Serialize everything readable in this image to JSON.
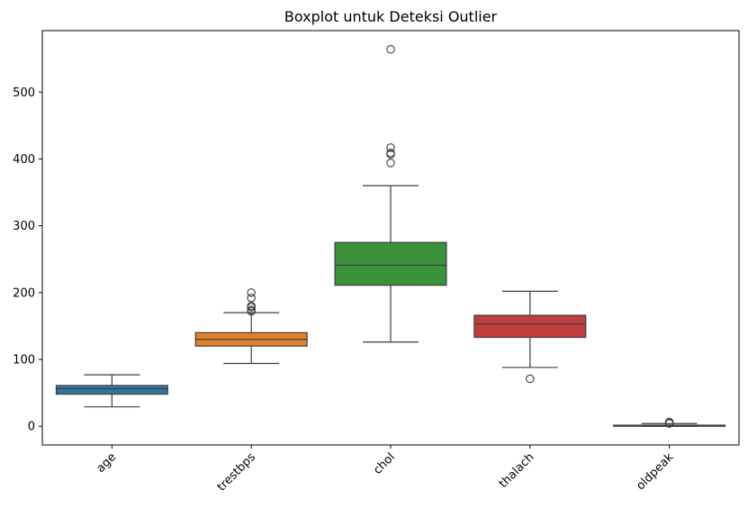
{
  "chart_data": {
    "type": "boxplot",
    "title": "Boxplot untuk Deteksi Outlier",
    "xlabel": "",
    "ylabel": "",
    "categories": [
      "age",
      "trestbps",
      "chol",
      "thalach",
      "oldpeak"
    ],
    "ylim": [
      -28,
      592
    ],
    "yticks": [
      0,
      100,
      200,
      300,
      400,
      500
    ],
    "xtick_rotation": 45,
    "grid": false,
    "boxes": [
      {
        "category": "age",
        "whisker_low": 29,
        "q1": 48,
        "median": 56,
        "q3": 61,
        "whisker_high": 77,
        "outliers": [],
        "color": "#3274a1"
      },
      {
        "category": "trestbps",
        "whisker_low": 94,
        "q1": 120,
        "median": 130,
        "q3": 140,
        "whisker_high": 170,
        "outliers": [
          172,
          174,
          178,
          180,
          192,
          200
        ],
        "color": "#e1812c"
      },
      {
        "category": "chol",
        "whisker_low": 126,
        "q1": 211,
        "median": 241,
        "q3": 275,
        "whisker_high": 360,
        "outliers": [
          394,
          407,
          409,
          417,
          564
        ],
        "color": "#3a923a"
      },
      {
        "category": "thalach",
        "whisker_low": 88,
        "q1": 133,
        "median": 153,
        "q3": 166,
        "whisker_high": 202,
        "outliers": [
          71
        ],
        "color": "#c03d3e"
      },
      {
        "category": "oldpeak",
        "whisker_low": 0,
        "q1": 0,
        "median": 0.8,
        "q3": 1.6,
        "whisker_high": 4,
        "outliers": [
          4.2,
          4.4,
          5.6,
          6.2
        ],
        "color": "#9372b2"
      }
    ]
  }
}
